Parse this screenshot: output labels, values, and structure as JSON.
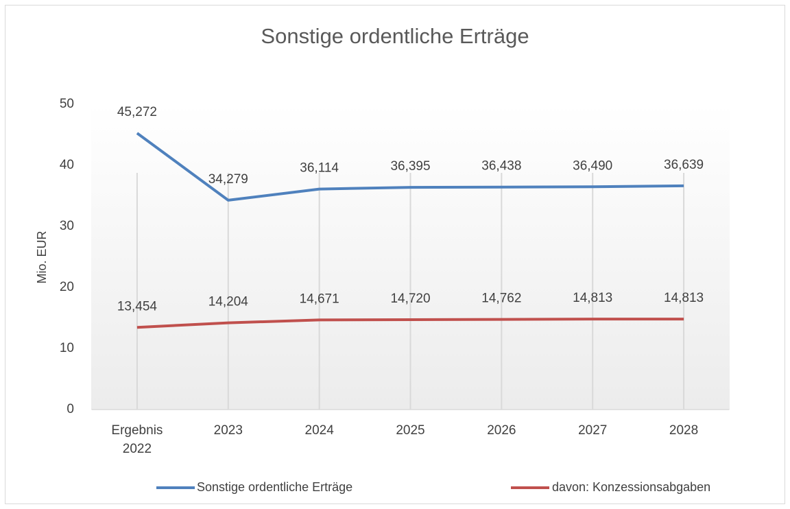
{
  "chart_data": {
    "type": "line",
    "title": "Sonstige ordentliche Erträge",
    "y_label": "Mio. EUR",
    "categories": [
      "Ergebnis 2022",
      "2023",
      "2024",
      "2025",
      "2026",
      "2027",
      "2028"
    ],
    "series": [
      {
        "name": "Sonstige ordentliche Erträge",
        "color": "#4f81bd",
        "values": [
          45.272,
          34.279,
          36.114,
          36.395,
          36.438,
          36.49,
          36.639
        ],
        "value_labels": [
          "45,272",
          "34,279",
          "36,114",
          "36,395",
          "36,438",
          "36,490",
          "36,639"
        ]
      },
      {
        "name": "davon: Konzessionsabgaben",
        "color": "#c0504d",
        "values": [
          13.454,
          14.204,
          14.671,
          14.72,
          14.762,
          14.813,
          14.813
        ],
        "value_labels": [
          "13,454",
          "14,204",
          "14,671",
          "14,720",
          "14,762",
          "14,813",
          "14,813"
        ]
      }
    ],
    "ylim": [
      0,
      50
    ],
    "yticks": [
      0,
      10,
      20,
      30,
      40,
      50
    ],
    "xgrid": true,
    "ygrid": false,
    "legend": "bottom"
  }
}
